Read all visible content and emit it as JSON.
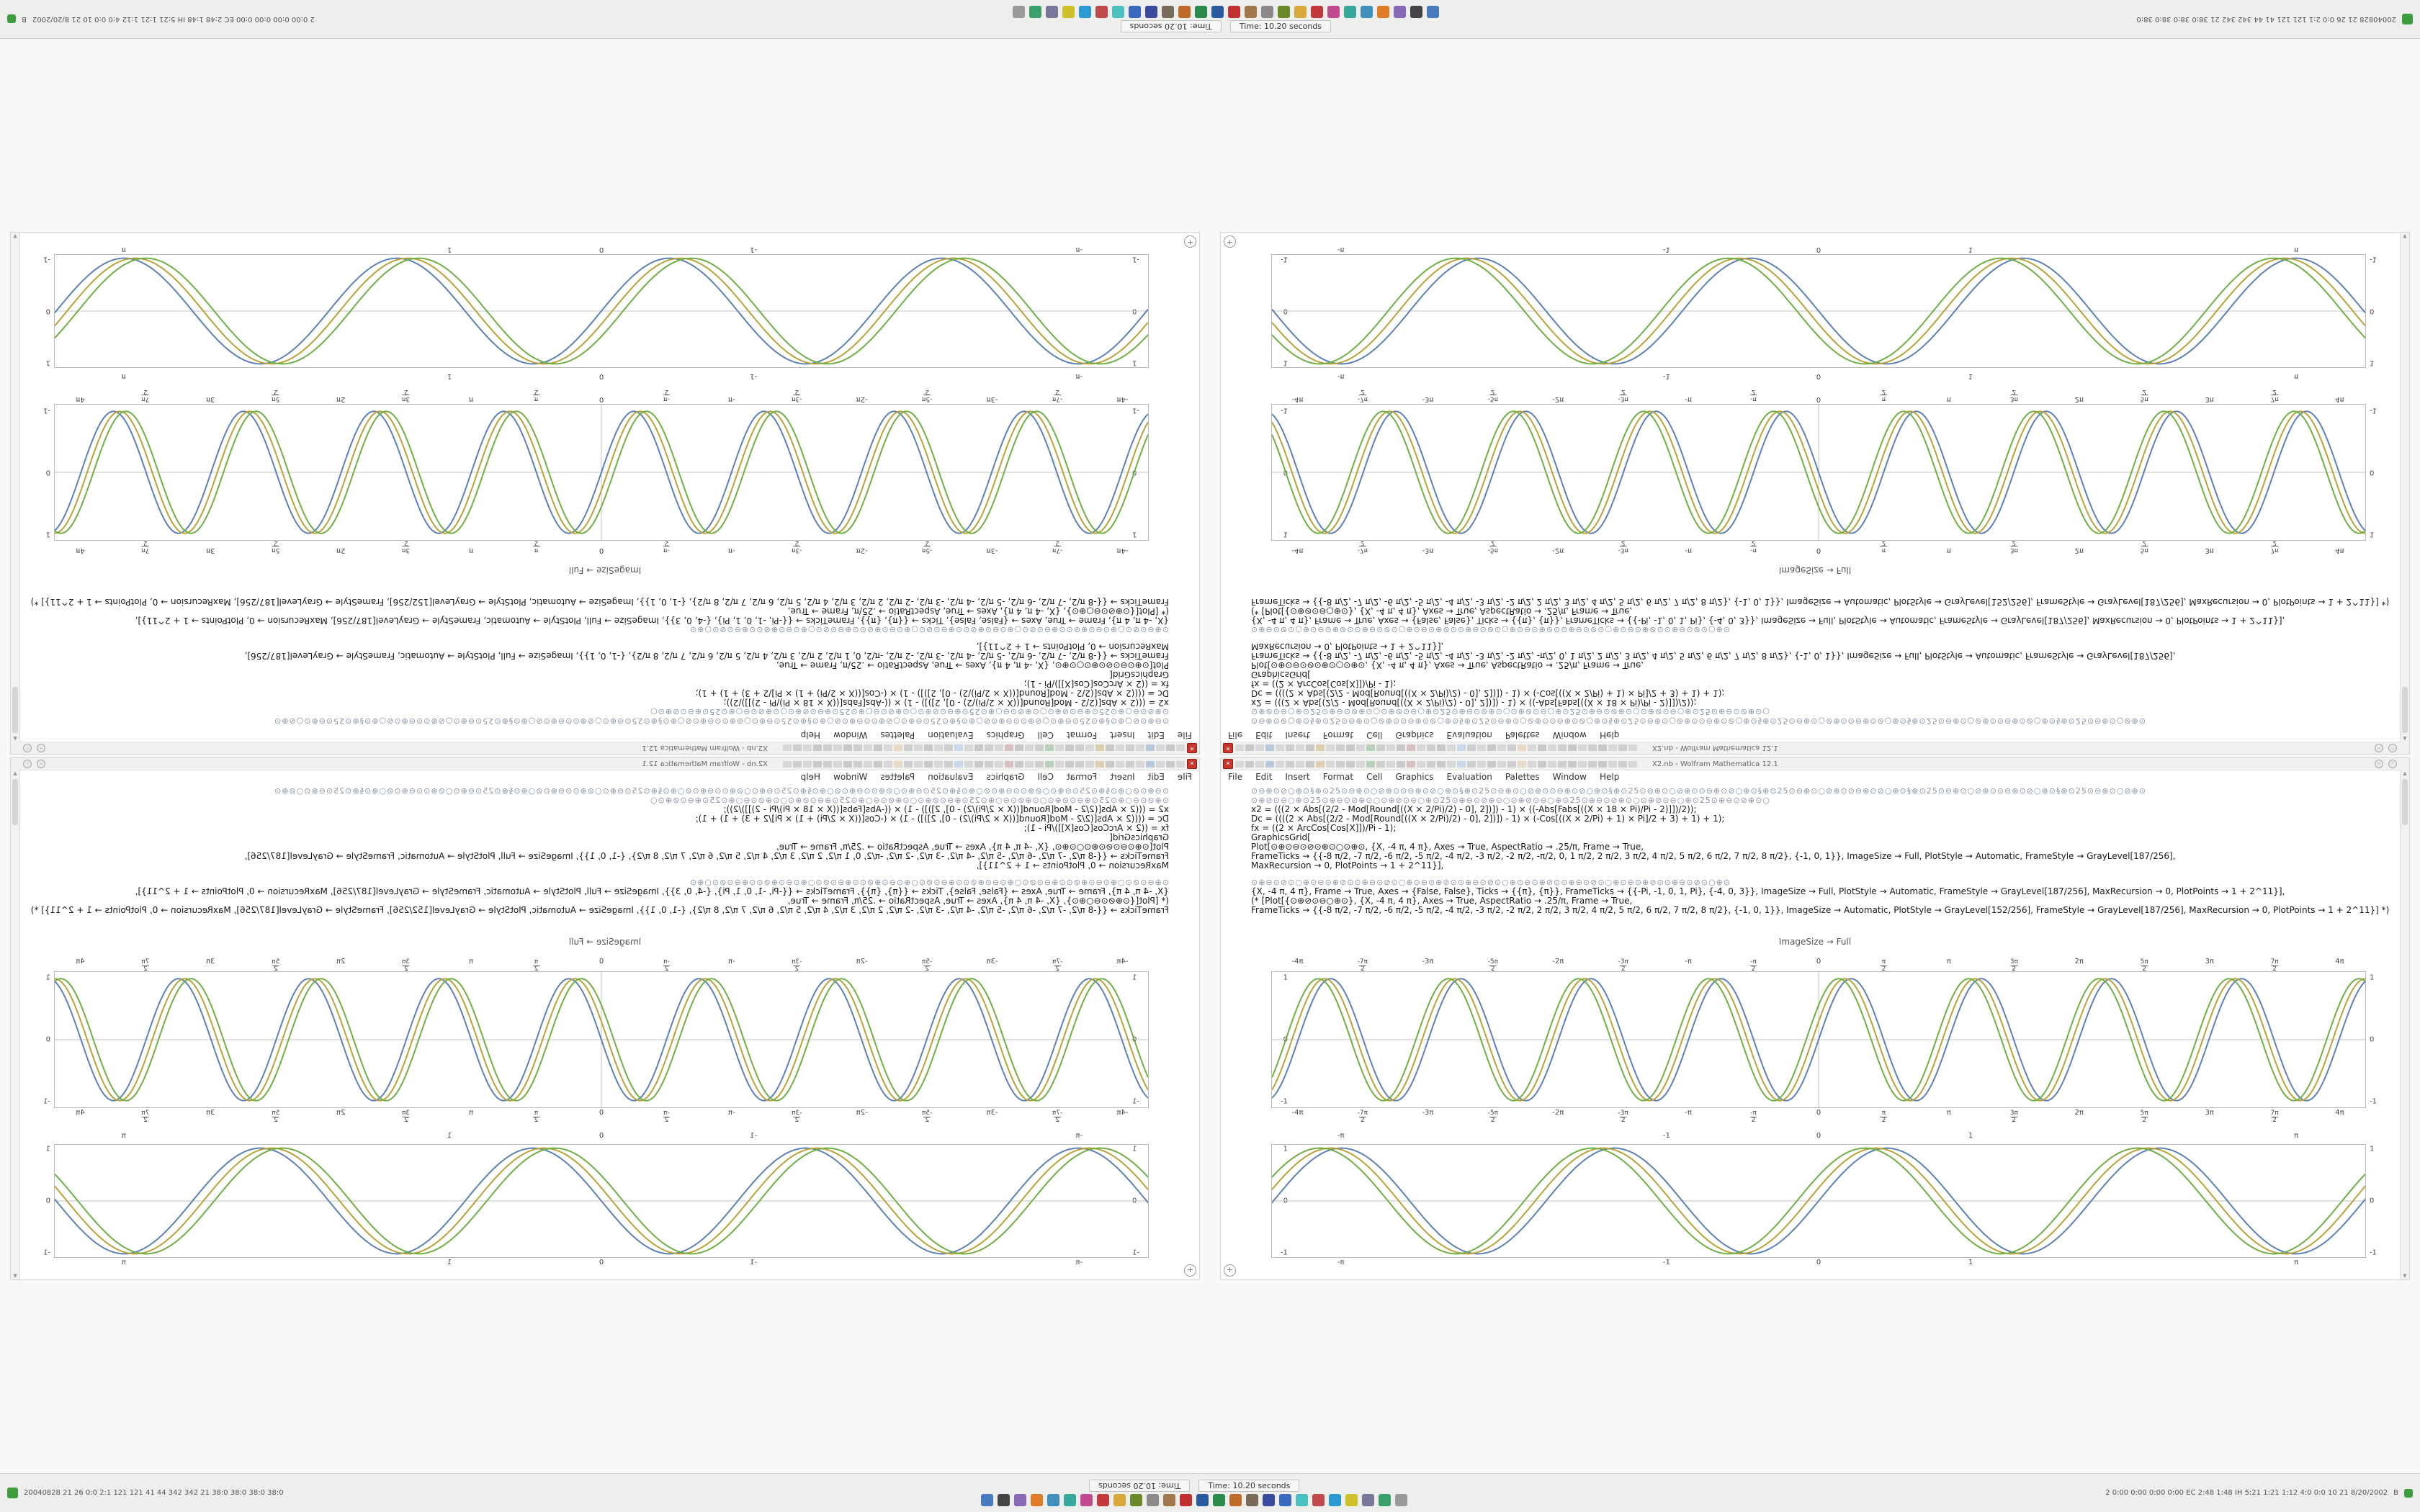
{
  "desktop": {
    "bg": "#f8f8f6"
  },
  "window": {
    "title": "X2.nb - Wolfram Mathematica 12.1",
    "close_label": "✕",
    "zoom_button": "+",
    "menu": {
      "items": [
        "File",
        "Edit",
        "Insert",
        "Format",
        "Cell",
        "Graphics",
        "Evaluation",
        "Palettes",
        "Window",
        "Help"
      ]
    },
    "toolbar_colors": [
      "#d8d8d8",
      "#c9c9c9",
      "#d8d8d8",
      "#b9c9dd",
      "#d8d8d8",
      "#cfcfcf",
      "#d8d8d8",
      "#c9c9c9",
      "#ddd0b0",
      "#d8d8d8",
      "#cfcfcf",
      "#c9c9c9",
      "#d8d8d8",
      "#b9d0b9",
      "#cfcfcf",
      "#d8d8d8",
      "#c9c9c9",
      "#d8c0c0",
      "#d8d8d8",
      "#cfcfcf",
      "#c9c9c9",
      "#d8d8d8",
      "#c9d9e9",
      "#cfcfcf",
      "#d8d8d8",
      "#c9c9c9",
      "#d8d8d8",
      "#cfcfcf",
      "#e9d9c9",
      "#d8d8d8",
      "#c9c9c9",
      "#d8d8d8",
      "#cfcfcf",
      "#c9c9c9",
      "#d8d8d8",
      "#cfcfcf",
      "#c9c9c9",
      "#d8d8d8",
      "#cfcfcf",
      "#d8d8d8"
    ],
    "code_a": [
      "⊙⊖⊕⊙⊘○⊕⊙§⊕⊙25⊙⊖⊕⊙○⊘⊕⊙⊙⊖⊕⊙⊘○⊕⊙§⊕⊙25⊙⊖⊕⊙○⊘⊕⊙⊙⊖⊕⊙⊘○⊕⊙§⊕⊙25⊙⊖⊕⊙○⊘⊕⊙⊙⊖⊕⊙⊘○⊕⊙§⊕⊙25⊙⊖⊕⊙○⊘⊕⊙⊙⊖⊕⊙⊘○⊕⊙§⊕⊙25⊙⊖⊕⊙○⊘⊕⊙⊙⊖⊕⊙⊘○⊕⊙§⊕⊙25⊙⊖⊕⊙○⊘⊕⊙",
      "⊙⊕⊘⊙⊖○⊕⊙25⊙⊕⊖⊙⊘⊕⊙○⊙⊕⊘⊙⊖○⊕⊙25⊙⊕⊖⊙⊘⊕⊙○⊙⊕⊘⊙⊖○⊕⊙25⊙⊕⊖⊙⊘⊕⊙○⊙⊕⊘⊙⊖○⊕⊙25⊙⊕⊖⊙⊘⊕⊙○",
      "x2 = (((2 × Abs[(2/2 - Mod[Round[((X × 2/Pi)/2) - 0], 2])]) - 1) × ((-Abs[Fabs[((X × 18 × Pi)/Pi - 2)]])/2));",
      "Dc = ((((2 × Abs[(2/2 - Mod[Round[((X × 2/Pi)/2) - 0], 2])]) - 1) × (-Cos[((X × 2/Pi) + 1) × Pi]/2 + 3) + 1) + 1);",
      "fx = ((2 × ArcCos[Cos[X]])/Pi - 1);",
      "GraphicsGrid[",
      "Plot[⊙⊕⊙⊖⊙⊘⊙⊕⊙○⊙⊕⊙, {X, -4 π, 4 π}, Axes → True, AspectRatio → .25/π, Frame → True,",
      "FrameTicks → {{-8 π/2, -7 π/2, -6 π/2, -5 π/2, -4 π/2, -3 π/2, -2 π/2, -π/2, 0, 1 π/2, 2 π/2, 3 π/2, 4 π/2, 5 π/2, 6 π/2, 7 π/2, 8 π/2}, {-1, 0, 1}}, ImageSize → Full, PlotStyle → Automatic, FrameStyle → GrayLevel[187/256],",
      "MaxRecursion → 0, PlotPoints → 1 + 2^11}],"
    ],
    "code_b": [
      "⊙⊕⊖⊙⊘⊙○⊕⊙⊖⊙⊕⊘⊙⊙⊕⊖⊙⊘⊙○⊕⊙⊖⊙⊕⊘⊙⊙⊕⊖⊙⊘⊙○⊕⊙⊖⊙⊕⊘⊙⊙⊕⊖⊙⊘⊙○⊕⊙⊖⊙⊕⊘⊙⊙⊕⊖⊙⊘⊙○⊕⊙",
      "{X, -4 π, 4 π}, Frame → True, Axes → {False, False}, Ticks → {{π}, {π}}, FrameTicks → {{-Pi, -1, 0, 1, Pi}, {-4, 0, 3}}, ImageSize → Full, PlotStyle → Automatic, FrameStyle → GrayLevel[187/256], MaxRecursion → 0, PlotPoints → 1 + 2^11}],",
      "(* [Plot[{⊙⊕⊘⊙⊖○⊕⊙}, {X, -4 π, 4 π}, Axes → True, AspectRatio → .25/π, Frame → True,",
      "FrameTicks → {{-8 π/2, -7 π/2, -6 π/2, -5 π/2, -4 π/2, -3 π/2, -2 π/2, 2 π/2, 3 π/2, 4 π/2, 5 π/2, 6 π/2, 7 π/2, 8 π/2}, {-1, 0, 1}}, ImageSize → Automatic, PlotStyle → GrayLevel[152/256], FrameStyle → GrayLevel[187/256], MaxRecursion → 0, PlotPoints → 1 + 2^11}] *)"
    ],
    "cell_label": "ImageSize → Full"
  },
  "chart_data": [
    {
      "type": "line",
      "title": "",
      "xlabel": "",
      "ylabel": "",
      "x_range": [
        -13.2,
        13.2
      ],
      "ylim": [
        -1,
        1
      ],
      "frame": true,
      "frame_color": "#c3c3c3",
      "y0_line": true,
      "x0_line": true,
      "legend": "none",
      "x_ticks": [
        {
          "x": -12.566,
          "label": "-4π"
        },
        {
          "x": -10.996,
          "label": "-7π/2"
        },
        {
          "x": -9.425,
          "label": "-3π"
        },
        {
          "x": -7.854,
          "label": "-5π/2"
        },
        {
          "x": -6.283,
          "label": "-2π"
        },
        {
          "x": -4.712,
          "label": "-3π/2"
        },
        {
          "x": -3.142,
          "label": "-π"
        },
        {
          "x": -1.571,
          "label": "-π/2"
        },
        {
          "x": 0,
          "label": "0"
        },
        {
          "x": 1.571,
          "label": "π/2"
        },
        {
          "x": 3.142,
          "label": "π"
        },
        {
          "x": 4.712,
          "label": "3π/2"
        },
        {
          "x": 6.283,
          "label": "2π"
        },
        {
          "x": 7.854,
          "label": "5π/2"
        },
        {
          "x": 9.425,
          "label": "3π"
        },
        {
          "x": 10.996,
          "label": "7π/2"
        },
        {
          "x": 12.566,
          "label": "4π"
        }
      ],
      "y_ticks": [
        "1",
        "0",
        "-1"
      ],
      "series": [
        {
          "name": "curve-1",
          "color": "#5e81b5",
          "amp": 0.93,
          "freq": 2,
          "phase": 0
        },
        {
          "name": "curve-2",
          "color": "#b8a23a",
          "amp": 0.93,
          "freq": 2,
          "phase": 0.3
        },
        {
          "name": "curve-3",
          "color": "#6faf45",
          "amp": 0.93,
          "freq": 2,
          "phase": 0.6
        }
      ],
      "function_form": "y = amp × sin(freq·x + phase)"
    },
    {
      "type": "line",
      "title": "",
      "xlabel": "",
      "ylabel": "",
      "x_range": [
        -3.6,
        3.6
      ],
      "ylim": [
        -1,
        1
      ],
      "frame": true,
      "frame_color": "#c3c3c3",
      "y0_line": true,
      "x0_line": false,
      "legend": "none",
      "x_ticks": [
        {
          "x": -3.142,
          "label": "-π"
        },
        {
          "x": -1,
          "label": "-1"
        },
        {
          "x": 0,
          "label": "0"
        },
        {
          "x": 1,
          "label": "1"
        },
        {
          "x": 3.142,
          "label": "π"
        }
      ],
      "y_ticks": [
        "1",
        "0",
        "-1"
      ],
      "series": [
        {
          "name": "curve-1",
          "color": "#5e81b5",
          "amp": 0.97,
          "freq": 3.5,
          "phase": 0
        },
        {
          "name": "curve-2",
          "color": "#b8a23a",
          "amp": 0.97,
          "freq": 3.5,
          "phase": 0.25
        },
        {
          "name": "curve-3",
          "color": "#6faf45",
          "amp": 0.97,
          "freq": 3.5,
          "phase": 0.5
        }
      ],
      "function_form": "y = amp × sin(freq·x + phase)"
    }
  ],
  "taskbar": {
    "window_title": "Time: 10.20 seconds",
    "left_status": "20040828  21 26  0:0  2:1  121 121  41 44  342 342  21  38:0 38:0 38:0 38:0",
    "right_status": "2  0:00 0:00 0:00 0:00  EC 2:48 1:48  IH 5:21 1:21 1:12  4:0 0:0  10 21  8/20/2002",
    "right_label": "B",
    "app_icons": [
      {
        "name": "file-manager-icon",
        "color": "#4a7ac0"
      },
      {
        "name": "terminal-icon",
        "color": "#444444"
      },
      {
        "name": "text-editor-icon",
        "color": "#8a68b8"
      },
      {
        "name": "web-browser-icon",
        "color": "#e07b2a"
      },
      {
        "name": "mail-icon",
        "color": "#3f8fbf"
      },
      {
        "name": "chat-icon",
        "color": "#38a89d"
      },
      {
        "name": "music-player-icon",
        "color": "#c24a8e"
      },
      {
        "name": "video-player-icon",
        "color": "#c23a3a"
      },
      {
        "name": "image-viewer-icon",
        "color": "#d6a93a"
      },
      {
        "name": "calculator-icon",
        "color": "#6a8a2a"
      },
      {
        "name": "settings-icon",
        "color": "#8a8a8a"
      },
      {
        "name": "archive-icon",
        "color": "#a0784a"
      },
      {
        "name": "pdf-viewer-icon",
        "color": "#c03030"
      },
      {
        "name": "writer-icon",
        "color": "#2a5a9f"
      },
      {
        "name": "spreadsheet-icon",
        "color": "#2a8a4a"
      },
      {
        "name": "presentation-icon",
        "color": "#c06a2a"
      },
      {
        "name": "paint-icon",
        "color": "#7a6a5a"
      },
      {
        "name": "vector-editor-icon",
        "color": "#394b9e"
      },
      {
        "name": "virtual-machine-icon",
        "color": "#3a6ac0"
      },
      {
        "name": "remote-desktop-icon",
        "color": "#4ac0c0"
      },
      {
        "name": "mathematica-icon",
        "color": "#c04a4a"
      },
      {
        "name": "code-editor-icon",
        "color": "#2a9ad0"
      },
      {
        "name": "notes-icon",
        "color": "#d0c02a"
      },
      {
        "name": "camera-icon",
        "color": "#777799"
      },
      {
        "name": "download-icon",
        "color": "#3aa06a"
      },
      {
        "name": "trash-icon",
        "color": "#9a9a9a"
      }
    ]
  }
}
